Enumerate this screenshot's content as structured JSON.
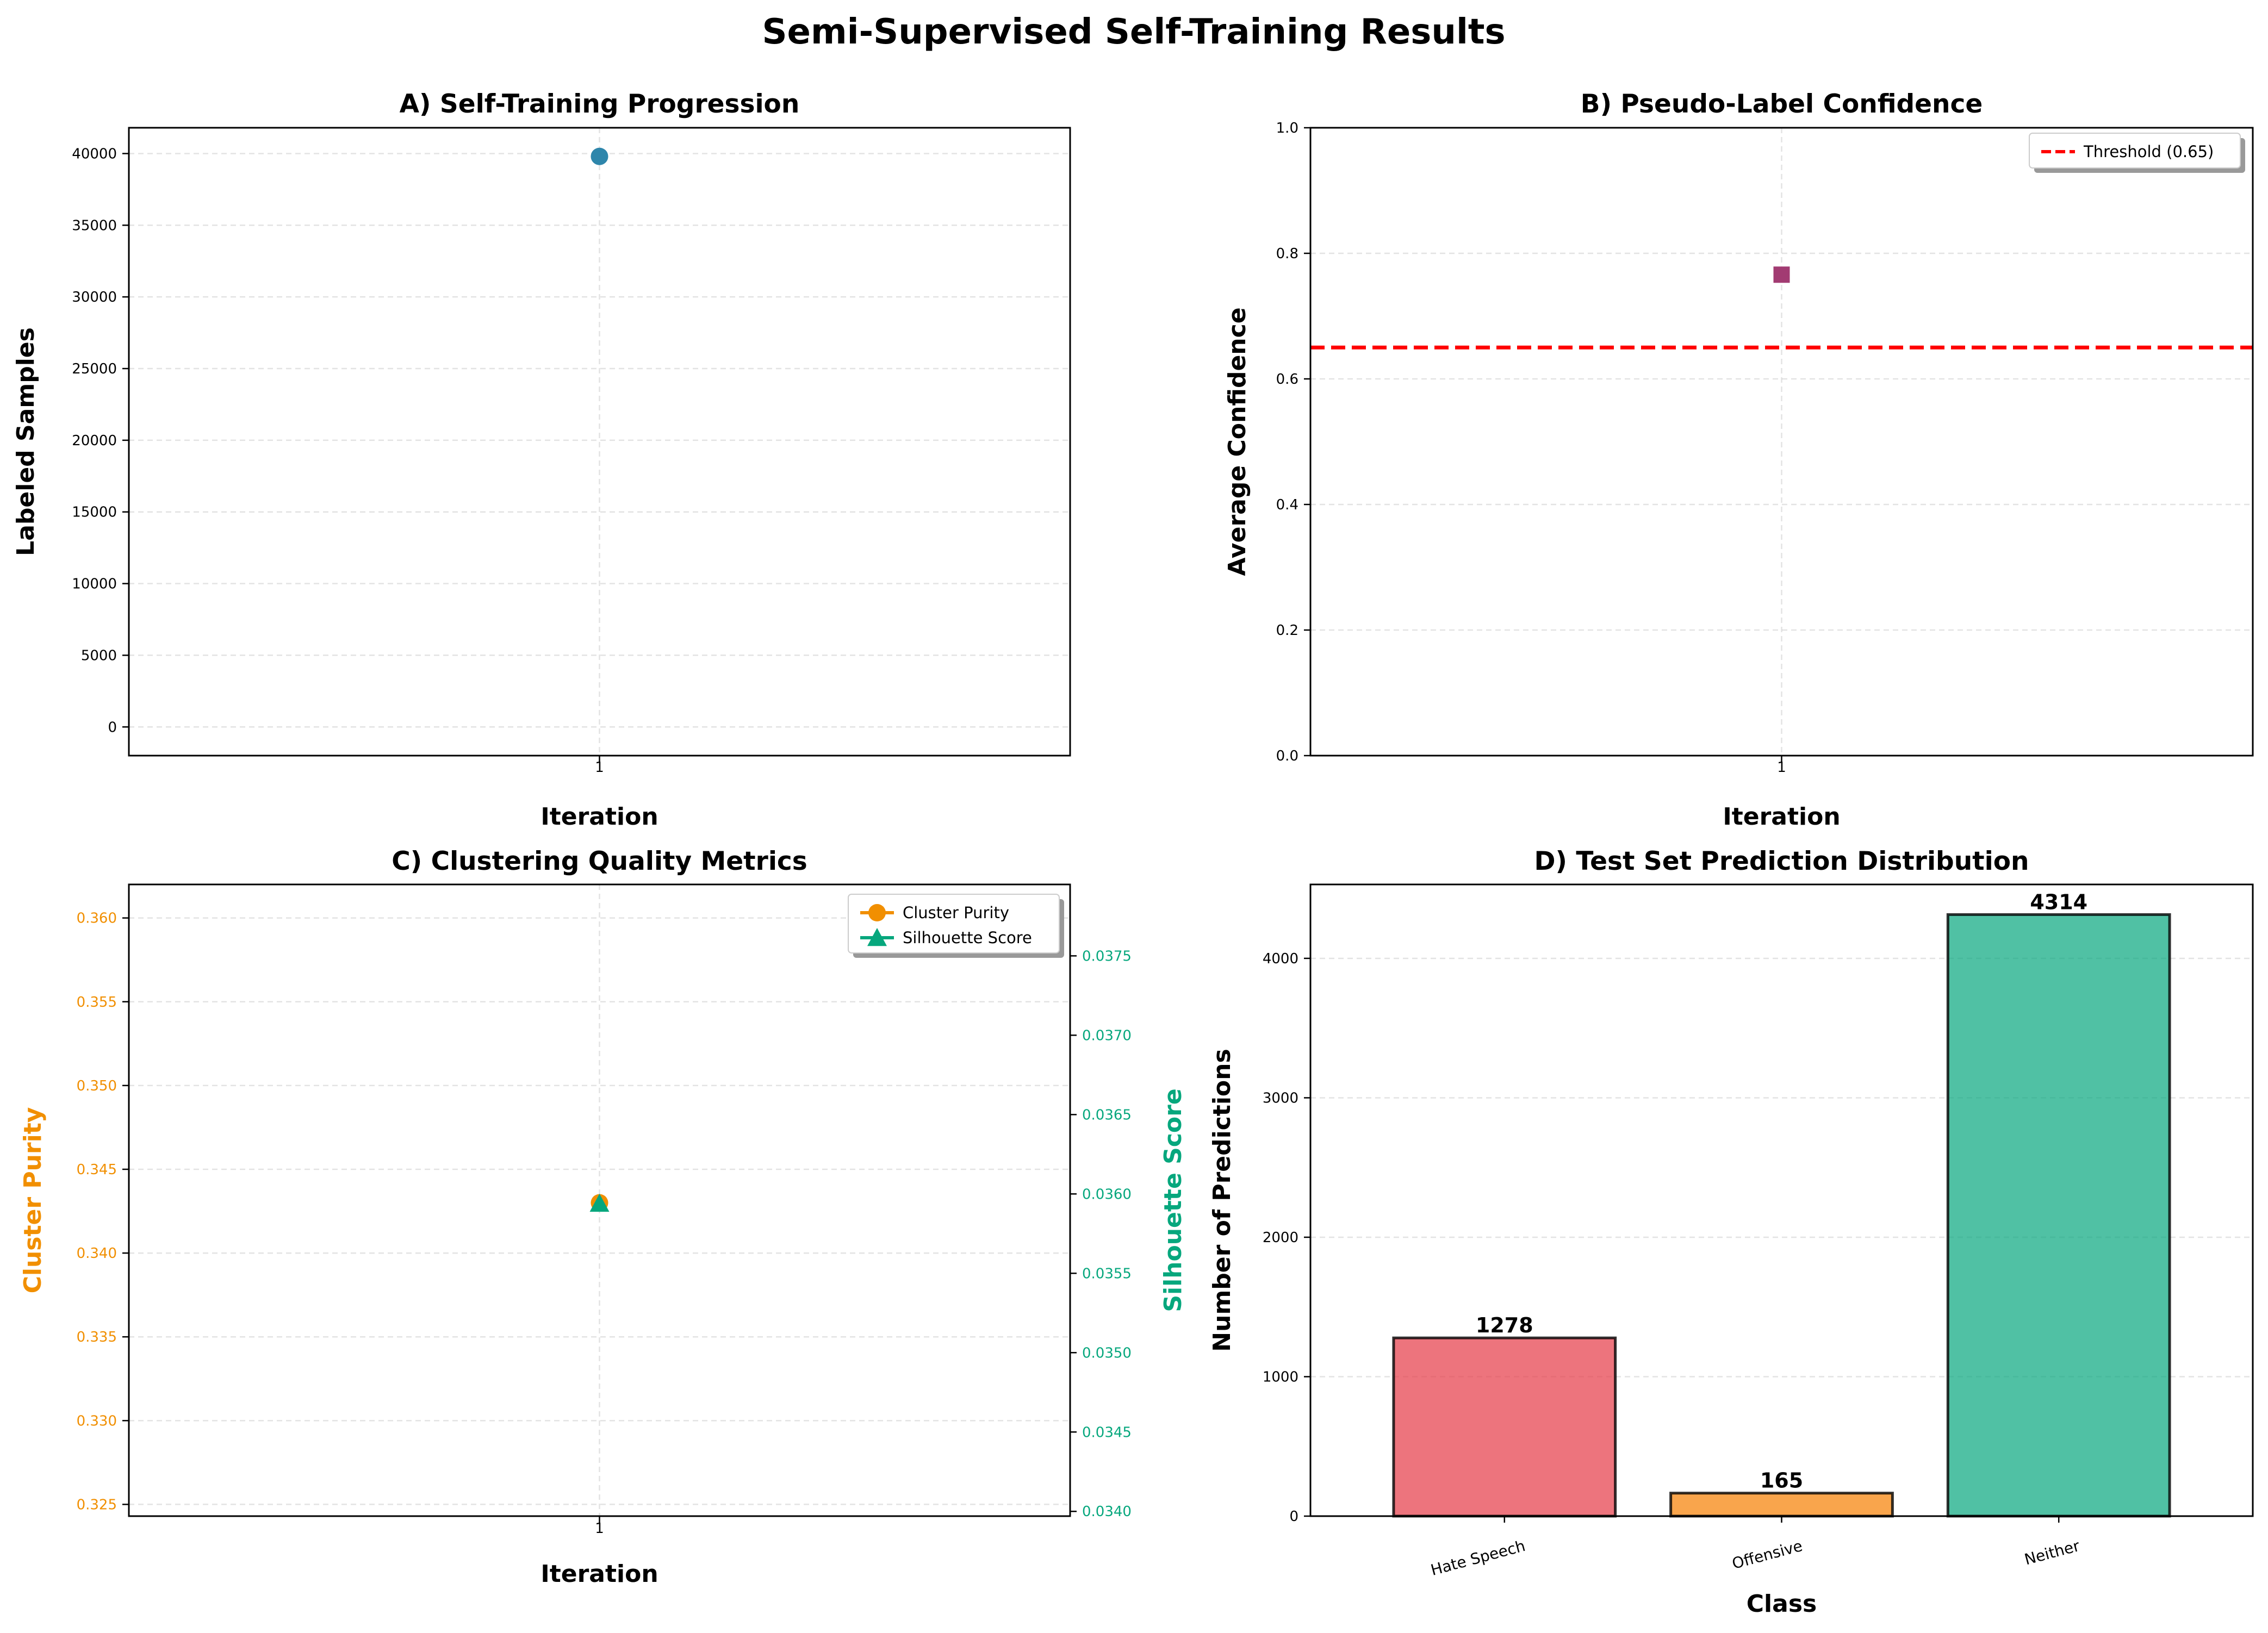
{
  "figure": {
    "title": "Semi-Supervised Self-Training Results"
  },
  "chart_data": [
    {
      "id": "A",
      "type": "scatter",
      "title": "A) Self-Training Progression",
      "xlabel": "Iteration",
      "ylabel": "Labeled Samples",
      "x_ticks": [
        "1"
      ],
      "y_ticks": [
        "0",
        "5000",
        "10000",
        "15000",
        "20000",
        "25000",
        "30000",
        "35000",
        "40000"
      ],
      "ylim": [
        -2000,
        41800
      ],
      "grid": true,
      "series": [
        {
          "x": [
            1
          ],
          "values": [
            39800
          ],
          "color": "#2e86ab",
          "marker": "circle"
        }
      ]
    },
    {
      "id": "B",
      "type": "scatter",
      "title": "B) Pseudo-Label Confidence",
      "xlabel": "Iteration",
      "ylabel": "Average Confidence",
      "x_ticks": [
        "1"
      ],
      "y_ticks": [
        "0.0",
        "0.2",
        "0.4",
        "0.6",
        "0.8",
        "1.0"
      ],
      "ylim": [
        0,
        1
      ],
      "grid": true,
      "legend_position": "top-right",
      "threshold": {
        "label": "Threshold (0.65)",
        "value": 0.65,
        "color": "#ff0000"
      },
      "series": [
        {
          "x": [
            1
          ],
          "values": [
            0.766
          ],
          "color": "#a23b72",
          "marker": "square"
        }
      ]
    },
    {
      "id": "C",
      "type": "line",
      "title": "C) Clustering Quality Metrics",
      "xlabel": "Iteration",
      "x_ticks": [
        "1"
      ],
      "grid": true,
      "legend_position": "top-right",
      "left_axis": {
        "label": "Cluster Purity",
        "color": "#f18f01",
        "ticks": [
          "0.325",
          "0.330",
          "0.335",
          "0.340",
          "0.345",
          "0.350",
          "0.355",
          "0.360"
        ],
        "ylim": [
          0.3243,
          0.362
        ]
      },
      "right_axis": {
        "label": "Silhouette Score",
        "color": "#06a77d",
        "ticks": [
          "0.0340",
          "0.0345",
          "0.0350",
          "0.0355",
          "0.0360",
          "0.0365",
          "0.0370",
          "0.0375"
        ],
        "ylim": [
          0.03397,
          0.03795
        ]
      },
      "series": [
        {
          "name": "Cluster Purity",
          "x": [
            1
          ],
          "values": [
            0.343
          ],
          "color": "#f18f01",
          "marker": "circle",
          "axis": "left"
        },
        {
          "name": "Silhouette Score",
          "x": [
            1
          ],
          "values": [
            0.03594
          ],
          "color": "#06a77d",
          "marker": "triangle",
          "axis": "right"
        }
      ]
    },
    {
      "id": "D",
      "type": "bar",
      "title": "D) Test Set Prediction Distribution",
      "xlabel": "Class",
      "ylabel": "Number of Predictions",
      "categories": [
        "Hate Speech",
        "Offensive",
        "Neither"
      ],
      "values": [
        1278,
        165,
        4314
      ],
      "value_labels": [
        "1278",
        "165",
        "4314"
      ],
      "colors": [
        "#e63946",
        "#f77f00",
        "#06a77d"
      ],
      "y_ticks": [
        "0",
        "1000",
        "2000",
        "3000",
        "4000"
      ],
      "ylim": [
        0,
        4530
      ],
      "grid": true
    }
  ]
}
